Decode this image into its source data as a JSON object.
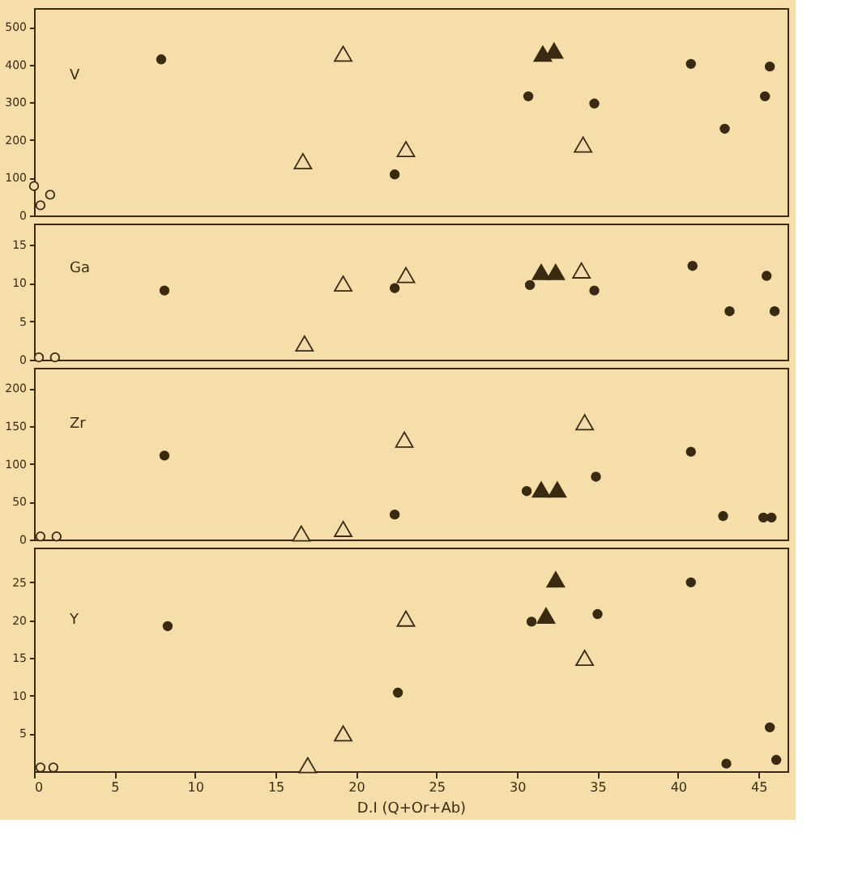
{
  "chart_data": [
    {
      "type": "scatter",
      "ylabel": "V",
      "xlim": [
        0,
        46.8
      ],
      "xticks": [
        0,
        5,
        10,
        15,
        20,
        25,
        30,
        35,
        40,
        45
      ],
      "ylim": [
        0,
        550
      ],
      "yticks": [
        0,
        100,
        200,
        300,
        400,
        500
      ],
      "tick_labels": "y",
      "grid": false,
      "series": [
        {
          "marker": "circle",
          "color": "#3a2a10",
          "x": [
            7.9,
            22.4,
            30.7,
            34.8,
            40.8,
            42.9,
            45.4,
            45.7
          ],
          "values": [
            414,
            109,
            316,
            297,
            402,
            230,
            316,
            395
          ]
        },
        {
          "marker": "triangle",
          "color": "#f3dcab",
          "x": [
            16.7,
            19.2,
            23.1,
            34.1
          ],
          "values": [
            144,
            429,
            176,
            188
          ]
        },
        {
          "marker": "triangle",
          "color": "#3a2a10",
          "x": [
            31.6,
            32.3
          ],
          "values": [
            429,
            437
          ]
        },
        {
          "marker": "circle",
          "color": "#f3dcab",
          "x": [
            0.0,
            0.4,
            1.0
          ],
          "values": [
            78,
            27,
            55
          ]
        }
      ]
    },
    {
      "type": "scatter",
      "ylabel": "Ga",
      "xlim": [
        0,
        46.8
      ],
      "xticks": [
        0,
        5,
        10,
        15,
        20,
        25,
        30,
        35,
        40,
        45
      ],
      "ylim": [
        0,
        17.7
      ],
      "yticks": [
        0,
        5,
        10,
        15
      ],
      "tick_labels": "y",
      "grid": false,
      "series": [
        {
          "marker": "circle",
          "color": "#3a2a10",
          "x": [
            8.1,
            22.4,
            30.8,
            34.8,
            40.9,
            43.2,
            45.5,
            46.0
          ],
          "values": [
            9.0,
            9.3,
            9.7,
            9.0,
            12.2,
            6.3,
            10.9,
            6.3
          ]
        },
        {
          "marker": "triangle",
          "color": "#f3dcab",
          "x": [
            16.8,
            19.2,
            23.1,
            34.0
          ],
          "values": [
            2.1,
            9.9,
            11.0,
            11.6
          ]
        },
        {
          "marker": "triangle",
          "color": "#3a2a10",
          "x": [
            31.5,
            32.4
          ],
          "values": [
            11.4,
            11.4
          ]
        },
        {
          "marker": "circle",
          "color": "#f3dcab",
          "x": [
            0.3,
            1.3
          ],
          "values": [
            0.3,
            0.3
          ]
        }
      ]
    },
    {
      "type": "scatter",
      "ylabel": "Zr",
      "xlim": [
        0,
        46.8
      ],
      "xticks": [
        0,
        5,
        10,
        15,
        20,
        25,
        30,
        35,
        40,
        45
      ],
      "ylim": [
        0,
        227
      ],
      "yticks": [
        0,
        50,
        100,
        150,
        200
      ],
      "tick_labels": "y",
      "grid": false,
      "series": [
        {
          "marker": "circle",
          "color": "#3a2a10",
          "x": [
            8.1,
            22.4,
            30.6,
            34.9,
            40.8,
            42.8,
            45.3,
            45.8
          ],
          "values": [
            111,
            33,
            64,
            83,
            116,
            31,
            29,
            29
          ]
        },
        {
          "marker": "triangle",
          "color": "#f3dcab",
          "x": [
            16.6,
            19.2,
            23.0,
            34.2
          ],
          "values": [
            8,
            14,
            132,
            155
          ]
        },
        {
          "marker": "triangle",
          "color": "#3a2a10",
          "x": [
            31.5,
            32.5
          ],
          "values": [
            66,
            66
          ]
        },
        {
          "marker": "circle",
          "color": "#f3dcab",
          "x": [
            0.4,
            1.4
          ],
          "values": [
            4,
            4
          ]
        }
      ]
    },
    {
      "type": "scatter",
      "ylabel": "Y",
      "xlabel": "D.I (Q+Or+Ab)",
      "xlim": [
        0,
        46.8
      ],
      "xticks": [
        0,
        5,
        10,
        15,
        20,
        25,
        30,
        35,
        40,
        45
      ],
      "ylim": [
        0,
        29.6
      ],
      "yticks": [
        5,
        10,
        15,
        20,
        25
      ],
      "grid": false,
      "series": [
        {
          "marker": "circle",
          "color": "#3a2a10",
          "x": [
            8.3,
            22.6,
            30.9,
            35.0,
            40.8,
            43.0,
            45.7,
            46.1
          ],
          "values": [
            19.2,
            10.4,
            19.8,
            20.8,
            25.0,
            1.0,
            5.8,
            1.5
          ]
        },
        {
          "marker": "triangle",
          "color": "#f3dcab",
          "x": [
            17.0,
            19.2,
            23.1,
            34.2
          ],
          "values": [
            0.8,
            5.0,
            20.2,
            15.0
          ]
        },
        {
          "marker": "triangle",
          "color": "#3a2a10",
          "x": [
            31.8,
            32.4
          ],
          "values": [
            20.6,
            25.4
          ]
        },
        {
          "marker": "circle",
          "color": "#f3dcab",
          "x": [
            0.4,
            1.2
          ],
          "values": [
            0.5,
            0.5
          ]
        }
      ]
    }
  ]
}
